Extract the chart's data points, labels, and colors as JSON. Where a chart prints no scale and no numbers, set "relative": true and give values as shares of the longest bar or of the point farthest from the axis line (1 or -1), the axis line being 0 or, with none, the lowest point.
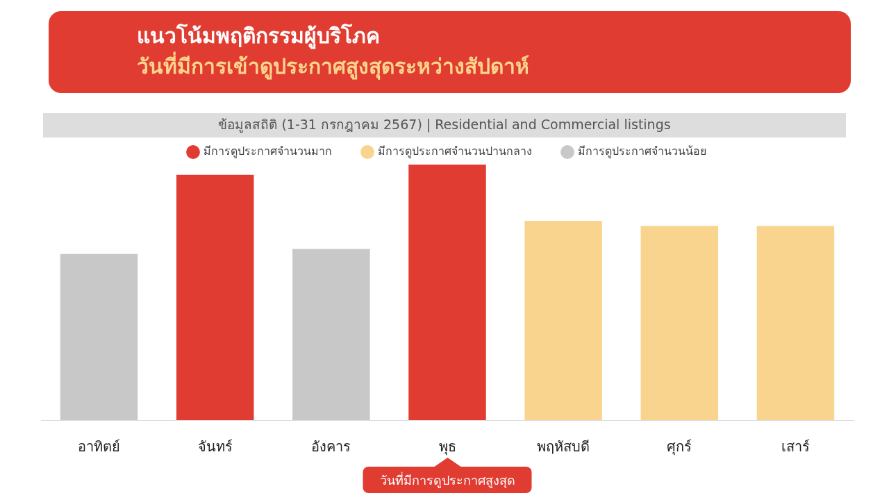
{
  "chart_data": {
    "type": "bar",
    "title": "แนวโน้มพฤติกรรมผู้บริโภค",
    "subtitle": "วันที่มีการเข้าดูประกาศสูงสุดระหว่างสัปดาห์",
    "categories": [
      "อาทิตย์",
      "จันทร์",
      "อังคาร",
      "พุธ",
      "พฤหัสบดี",
      "ศุกร์",
      "เสาร์"
    ],
    "series": [
      {
        "name": "มีการดูประกาศจำนวนมาก",
        "color": "#e03c31",
        "values": [
          null,
          0.96,
          null,
          1,
          null,
          null,
          null
        ]
      },
      {
        "name": "มีการดูประกาศจำนวนปานกลาง",
        "color": "#f9d48f",
        "values": [
          null,
          null,
          null,
          null,
          0.78,
          0.76,
          0.76
        ]
      },
      {
        "name": "มีการดูประกาศจำนวนน้อย",
        "color": "#c8c8c8",
        "values": [
          0.65,
          null,
          0.67,
          null,
          null,
          null,
          null
        ]
      }
    ],
    "stacked": true,
    "relative": true,
    "legend": "top",
    "annotations": [
      "ข้อมูลสถิติ (1-31 กรกฎาคม 2567) | Residential and Commercial listings",
      "วันที่มีการดูประกาศสูงสุด"
    ]
  }
}
